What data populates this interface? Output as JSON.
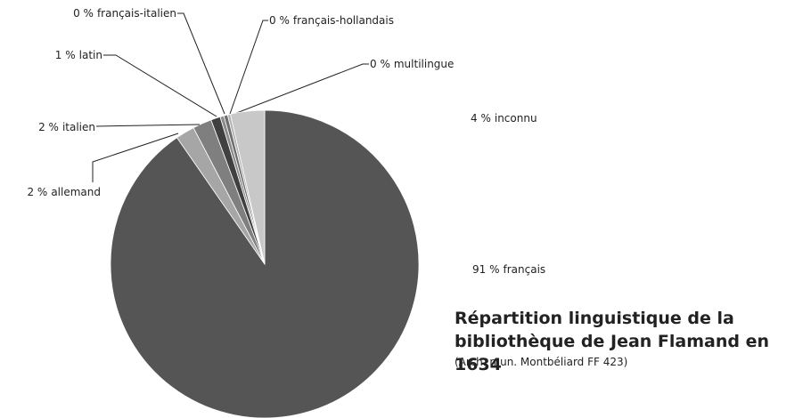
{
  "chart_data": {
    "type": "pie",
    "title": "Répartition linguistique de la bibliothèque de Jean Flamand en 1634",
    "subtitle": "(Arch. mun. Montbéliard FF 423)",
    "categories": [
      "français",
      "allemand",
      "italien",
      "latin",
      "français-italien",
      "français-hollandais",
      "multilingue",
      "inconnu"
    ],
    "values": [
      91,
      2,
      2,
      1,
      0.4,
      0.4,
      0.3,
      3.6
    ],
    "value_labels": [
      "91 %",
      "2 %",
      "2 %",
      "1 %",
      "0 %",
      "0 %",
      "0 %",
      "4 %"
    ],
    "colors": [
      "#555555",
      "#a6a6a6",
      "#7f7f7f",
      "#404040",
      "#8c8c8c",
      "#6e6e6e",
      "#b4b4b4",
      "#c8c8c8"
    ]
  }
}
